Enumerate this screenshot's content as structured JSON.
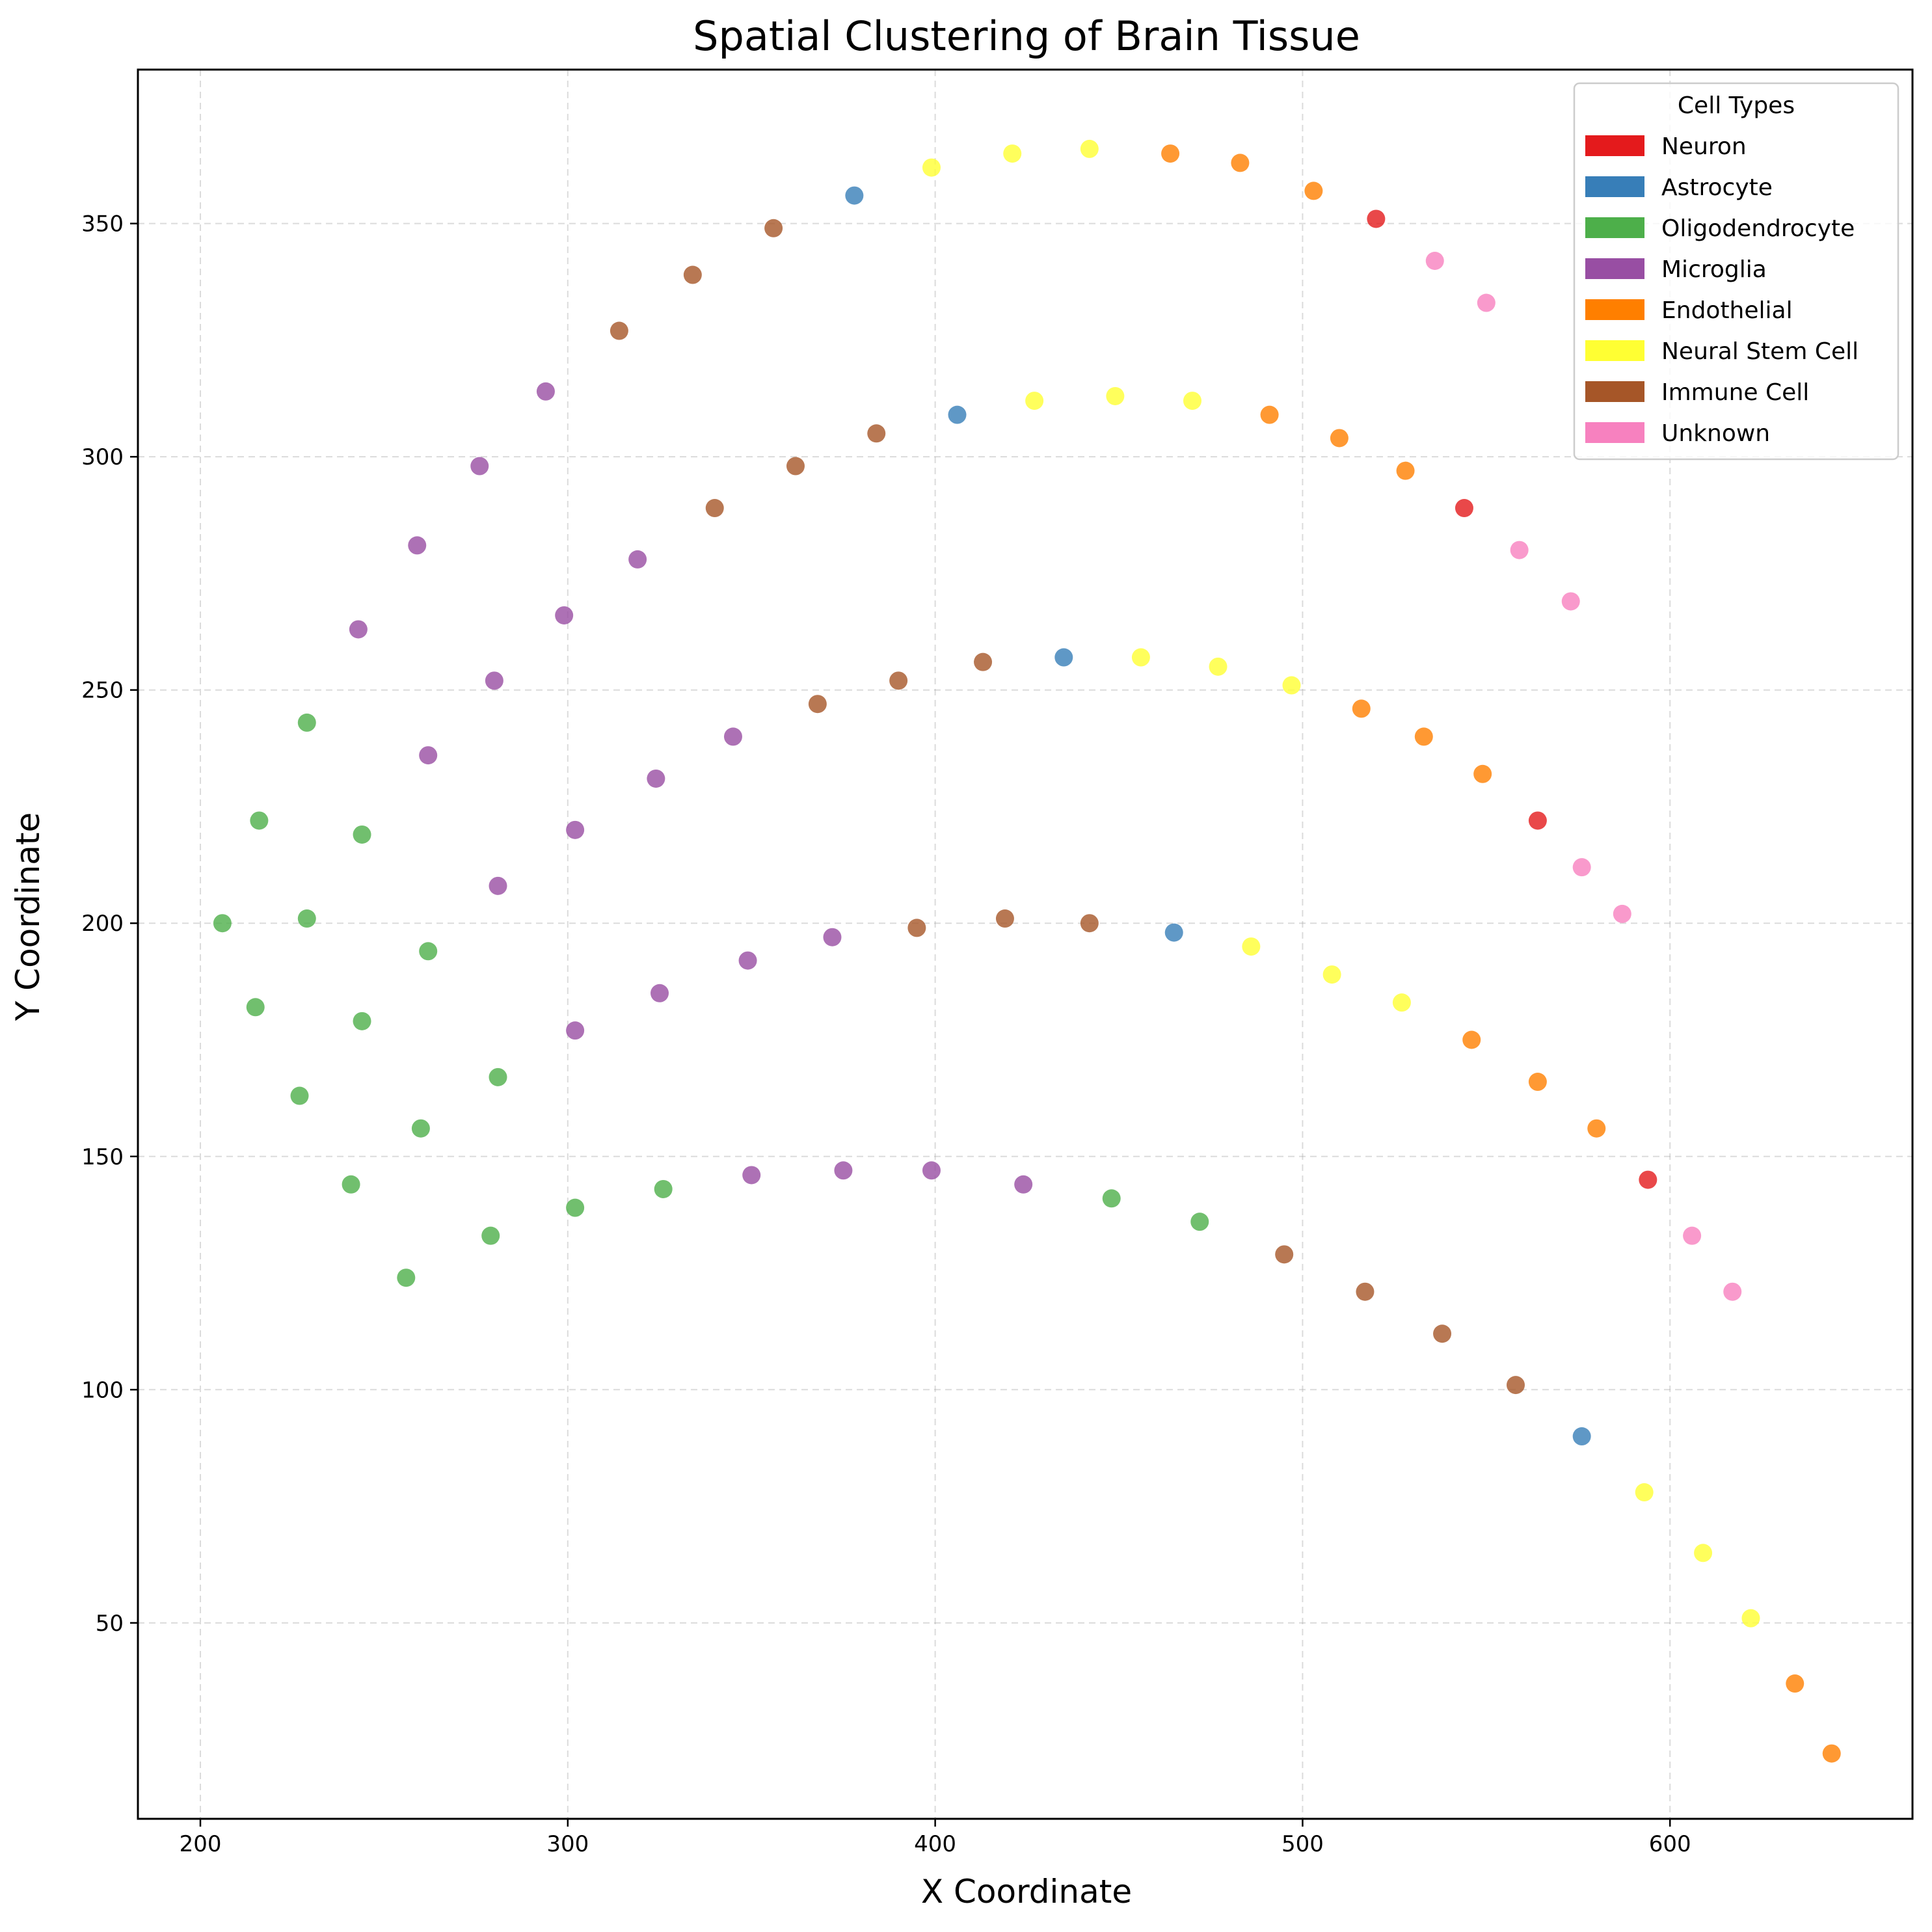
{
  "chart_data": {
    "type": "scatter",
    "title": "Spatial Clustering of Brain Tissue",
    "xlabel": "X Coordinate",
    "ylabel": "Y Coordinate",
    "xlim": [
      183,
      666
    ],
    "ylim": [
      8,
      383
    ],
    "xticks": [
      200,
      300,
      400,
      500,
      600
    ],
    "yticks": [
      50,
      100,
      150,
      200,
      250,
      300,
      350
    ],
    "grid": true,
    "legend": {
      "title": "Cell Types",
      "placement": "top-right",
      "entries": [
        "Neuron",
        "Astrocyte",
        "Oligodendrocyte",
        "Microglia",
        "Endothelial",
        "Neural Stem Cell",
        "Immune Cell",
        "Unknown"
      ]
    },
    "colors": {
      "Neuron": "#e41a1c",
      "Astrocyte": "#377eb8",
      "Oligodendrocyte": "#4daf4a",
      "Microglia": "#984ea3",
      "Endothelial": "#ff7f00",
      "Neural Stem Cell": "#ffff33",
      "Immune Cell": "#a65628",
      "Unknown": "#f781bf"
    },
    "series": [
      {
        "name": "Neuron",
        "x": [
          520,
          544,
          564,
          594
        ],
        "y": [
          351,
          289,
          222,
          145
        ]
      },
      {
        "name": "Astrocyte",
        "x": [
          378,
          406,
          435,
          465,
          576
        ],
        "y": [
          356,
          309,
          257,
          198,
          90
        ]
      },
      {
        "name": "Oligodendrocyte",
        "x": [
          229,
          216,
          244,
          206,
          229,
          262,
          215,
          244,
          281,
          227,
          260,
          241,
          279,
          256,
          302,
          326,
          448,
          472
        ],
        "y": [
          243,
          222,
          219,
          200,
          201,
          194,
          182,
          179,
          167,
          163,
          156,
          144,
          133,
          124,
          139,
          143,
          141,
          136
        ]
      },
      {
        "name": "Microglia",
        "x": [
          294,
          276,
          259,
          243,
          299,
          319,
          280,
          262,
          345,
          324,
          302,
          281,
          372,
          349,
          325,
          302,
          350,
          375,
          399,
          424
        ],
        "y": [
          314,
          298,
          281,
          263,
          266,
          278,
          252,
          236,
          240,
          231,
          220,
          208,
          197,
          192,
          185,
          177,
          146,
          147,
          147,
          144
        ]
      },
      {
        "name": "Endothelial",
        "x": [
          464,
          483,
          503,
          491,
          510,
          528,
          516,
          533,
          549,
          546,
          564,
          580,
          634,
          644
        ],
        "y": [
          365,
          363,
          357,
          309,
          304,
          297,
          246,
          240,
          232,
          175,
          166,
          156,
          37,
          22
        ]
      },
      {
        "name": "Neural Stem Cell",
        "x": [
          399,
          421,
          442,
          427,
          449,
          470,
          456,
          477,
          497,
          486,
          508,
          527,
          593,
          609,
          622
        ],
        "y": [
          362,
          365,
          366,
          312,
          313,
          312,
          257,
          255,
          251,
          195,
          189,
          183,
          78,
          65,
          51
        ]
      },
      {
        "name": "Immune Cell",
        "x": [
          356,
          334,
          314,
          384,
          362,
          340,
          413,
          390,
          368,
          442,
          419,
          395,
          495,
          517,
          538,
          558
        ],
        "y": [
          349,
          339,
          327,
          305,
          298,
          289,
          256,
          252,
          247,
          200,
          201,
          199,
          129,
          121,
          112,
          101
        ]
      },
      {
        "name": "Unknown",
        "x": [
          536,
          550,
          559,
          573,
          576,
          587,
          606,
          617
        ],
        "y": [
          342,
          333,
          280,
          269,
          212,
          202,
          133,
          121
        ]
      }
    ]
  }
}
